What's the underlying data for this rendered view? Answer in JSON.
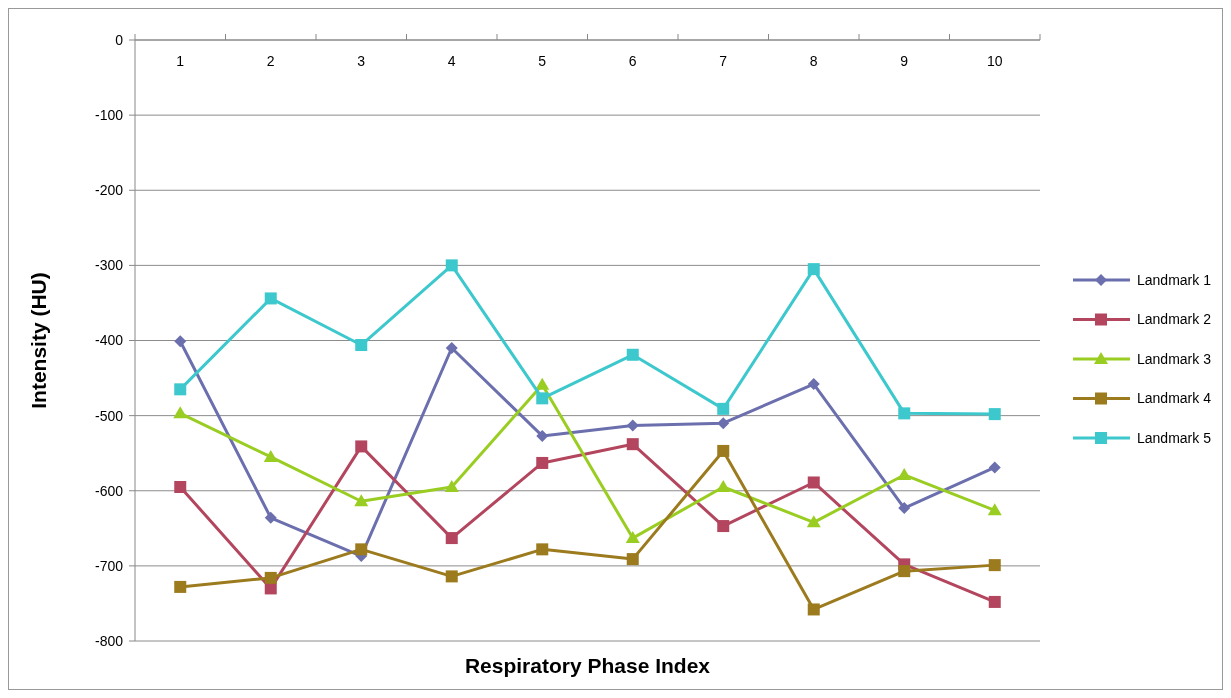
{
  "chart_data": {
    "type": "line",
    "xlabel": "Respiratory Phase Index",
    "ylabel": "Intensity (HU)",
    "categories": [
      "1",
      "2",
      "3",
      "4",
      "5",
      "6",
      "7",
      "8",
      "9",
      "10"
    ],
    "ylim": [
      -800,
      0
    ],
    "yticks": [
      -800,
      -700,
      -600,
      -500,
      -400,
      -300,
      -200,
      -100,
      0
    ],
    "grid": "y",
    "legend": "right",
    "line_style": "solid",
    "series": [
      {
        "name": "Landmark 1",
        "color": "#6b6fad",
        "marker": "diamond",
        "values": [
          -401,
          -636,
          -687,
          -410,
          -527,
          -513,
          -510,
          -458,
          -623,
          -569
        ]
      },
      {
        "name": "Landmark 2",
        "color": "#b3465e",
        "marker": "square",
        "values": [
          -595,
          -730,
          -541,
          -663,
          -563,
          -538,
          -647,
          -589,
          -698,
          -748
        ]
      },
      {
        "name": "Landmark 3",
        "color": "#9acd22",
        "marker": "triangle",
        "values": [
          -497,
          -555,
          -614,
          -595,
          -459,
          -663,
          -595,
          -642,
          -579,
          -626
        ]
      },
      {
        "name": "Landmark 4",
        "color": "#9c7a1e",
        "marker": "square",
        "values": [
          -728,
          -716,
          -678,
          -714,
          -678,
          -691,
          -547,
          -758,
          -707,
          -699
        ]
      },
      {
        "name": "Landmark 5",
        "color": "#3cc8cc",
        "marker": "square",
        "values": [
          -465,
          -344,
          -406,
          -300,
          -477,
          -419,
          -491,
          -305,
          -497,
          -498
        ]
      }
    ]
  }
}
